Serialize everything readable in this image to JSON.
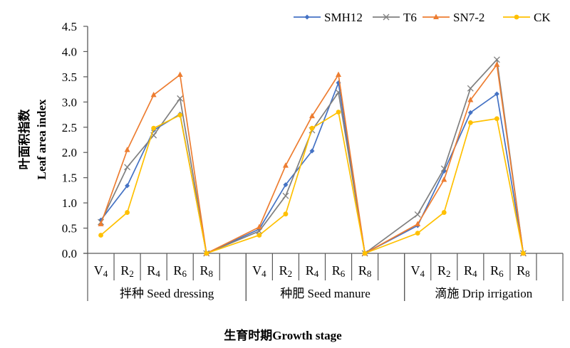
{
  "chart_data": {
    "type": "line",
    "title": "",
    "xlabel": "生育时期Growth stage",
    "ylabel_cn": "叶面积指数",
    "ylabel_en": "Leaf area index",
    "ylim": [
      0,
      4.5
    ],
    "yticks": [
      "0.0",
      "0.5",
      "1.0",
      "1.5",
      "2.0",
      "2.5",
      "3.0",
      "3.5",
      "4.0",
      "4.5"
    ],
    "ytick_values": [
      0,
      0.5,
      1.0,
      1.5,
      2.0,
      2.5,
      3.0,
      3.5,
      4.0,
      4.5
    ],
    "grid": false,
    "legend_position": "top-right",
    "stages": [
      {
        "letter": "V",
        "sub": "4"
      },
      {
        "letter": "R",
        "sub": "2"
      },
      {
        "letter": "R",
        "sub": "4"
      },
      {
        "letter": "R",
        "sub": "6"
      },
      {
        "letter": "R",
        "sub": "8"
      }
    ],
    "groups": [
      "拌种 Seed dressing",
      "种肥 Seed manure",
      "滴施 Drip irrigation"
    ],
    "series": [
      {
        "name": "SMH12",
        "color": "#4472C4",
        "marker": "diamond",
        "values": [
          [
            0.66,
            1.34,
            2.44,
            2.76,
            0.0
          ],
          [
            0.48,
            1.36,
            2.03,
            3.38,
            0.0
          ],
          [
            0.55,
            1.63,
            2.79,
            3.16,
            0.0
          ]
        ]
      },
      {
        "name": "T6",
        "color": "#7F7F7F",
        "marker": "x",
        "values": [
          [
            0.62,
            1.71,
            2.34,
            3.07,
            0.0
          ],
          [
            0.44,
            1.14,
            2.44,
            3.19,
            0.0
          ],
          [
            0.77,
            1.68,
            3.27,
            3.84,
            0.0
          ]
        ]
      },
      {
        "name": "SN7-2",
        "color": "#ED7D31",
        "marker": "triangle",
        "values": [
          [
            0.58,
            2.05,
            3.14,
            3.54,
            0.0
          ],
          [
            0.52,
            1.74,
            2.72,
            3.54,
            0.0
          ],
          [
            0.58,
            1.46,
            3.04,
            3.74,
            0.0
          ]
        ]
      },
      {
        "name": "CK",
        "color": "#FFC000",
        "marker": "circle",
        "values": [
          [
            0.36,
            0.81,
            2.48,
            2.74,
            0.0
          ],
          [
            0.36,
            0.78,
            2.48,
            2.8,
            0.0
          ],
          [
            0.4,
            0.81,
            2.59,
            2.67,
            0.0
          ]
        ]
      }
    ]
  }
}
